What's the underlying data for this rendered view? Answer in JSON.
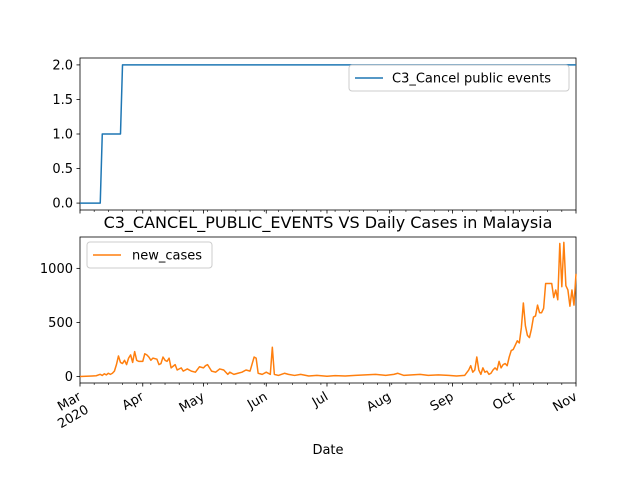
{
  "title": "C3_CANCEL_PUBLIC_EVENTS VS Daily Cases in Malaysia",
  "xlabel": "Date",
  "colors": {
    "series1": "#1f77b4",
    "series2": "#ff7f0e",
    "axes": "#000000",
    "background": "#ffffff"
  },
  "chart_data": [
    {
      "type": "line",
      "title": "",
      "xlabel": "",
      "ylabel": "",
      "legend": "top-right",
      "grid": false,
      "xlim": [
        "2020-03-01",
        "2020-11-01"
      ],
      "ylim": [
        -0.1,
        2.1
      ],
      "yticks": [
        0.0,
        0.5,
        1.0,
        1.5,
        2.0
      ],
      "ytick_labels": [
        "0.0",
        "0.5",
        "1.0",
        "1.5",
        "2.0"
      ],
      "series": [
        {
          "name": "C3_Cancel public events",
          "color": "#1f77b4",
          "points": [
            [
              "2020-03-01",
              0
            ],
            [
              "2020-03-11",
              0
            ],
            [
              "2020-03-12",
              1
            ],
            [
              "2020-03-21",
              1
            ],
            [
              "2020-03-22",
              2
            ],
            [
              "2020-11-01",
              2
            ]
          ]
        }
      ]
    },
    {
      "type": "line",
      "title": "C3_CANCEL_PUBLIC_EVENTS VS Daily Cases in Malaysia",
      "xlabel": "Date",
      "ylabel": "",
      "legend": "top-left",
      "grid": false,
      "xlim": [
        "2020-03-01",
        "2020-11-01"
      ],
      "ylim": [
        -60,
        1290
      ],
      "yticks": [
        0,
        500,
        1000
      ],
      "ytick_labels": [
        "0",
        "500",
        "1000"
      ],
      "xticks": [
        "2020-03-01",
        "2020-04-01",
        "2020-05-01",
        "2020-06-01",
        "2020-07-01",
        "2020-08-01",
        "2020-09-01",
        "2020-10-01",
        "2020-11-01"
      ],
      "xtick_labels": [
        "Mar\n2020",
        "Apr",
        "May",
        "Jun",
        "Jul",
        "Aug",
        "Sep",
        "Oct",
        "Nov"
      ],
      "series": [
        {
          "name": "new_cases",
          "color": "#ff7f0e",
          "points": [
            [
              "2020-03-01",
              0
            ],
            [
              "2020-03-04",
              2
            ],
            [
              "2020-03-07",
              5
            ],
            [
              "2020-03-09",
              7
            ],
            [
              "2020-03-11",
              20
            ],
            [
              "2020-03-12",
              10
            ],
            [
              "2020-03-13",
              25
            ],
            [
              "2020-03-14",
              15
            ],
            [
              "2020-03-15",
              30
            ],
            [
              "2020-03-16",
              20
            ],
            [
              "2020-03-17",
              30
            ],
            [
              "2020-03-18",
              50
            ],
            [
              "2020-03-19",
              110
            ],
            [
              "2020-03-20",
              190
            ],
            [
              "2020-03-21",
              130
            ],
            [
              "2020-03-22",
              120
            ],
            [
              "2020-03-23",
              150
            ],
            [
              "2020-03-24",
              110
            ],
            [
              "2020-03-25",
              170
            ],
            [
              "2020-03-26",
              200
            ],
            [
              "2020-03-27",
              130
            ],
            [
              "2020-03-28",
              230
            ],
            [
              "2020-03-29",
              150
            ],
            [
              "2020-03-30",
              140
            ],
            [
              "2020-04-01",
              140
            ],
            [
              "2020-04-02",
              210
            ],
            [
              "2020-04-03",
              200
            ],
            [
              "2020-04-04",
              180
            ],
            [
              "2020-04-05",
              150
            ],
            [
              "2020-04-06",
              170
            ],
            [
              "2020-04-08",
              160
            ],
            [
              "2020-04-09",
              110
            ],
            [
              "2020-04-10",
              120
            ],
            [
              "2020-04-11",
              180
            ],
            [
              "2020-04-12",
              150
            ],
            [
              "2020-04-13",
              140
            ],
            [
              "2020-04-14",
              170
            ],
            [
              "2020-04-15",
              80
            ],
            [
              "2020-04-17",
              110
            ],
            [
              "2020-04-18",
              60
            ],
            [
              "2020-04-20",
              80
            ],
            [
              "2020-04-21",
              50
            ],
            [
              "2020-04-23",
              70
            ],
            [
              "2020-04-25",
              50
            ],
            [
              "2020-04-27",
              40
            ],
            [
              "2020-04-29",
              90
            ],
            [
              "2020-05-01",
              80
            ],
            [
              "2020-05-02",
              100
            ],
            [
              "2020-05-03",
              110
            ],
            [
              "2020-05-05",
              50
            ],
            [
              "2020-05-07",
              40
            ],
            [
              "2020-05-09",
              70
            ],
            [
              "2020-05-11",
              60
            ],
            [
              "2020-05-13",
              20
            ],
            [
              "2020-05-14",
              40
            ],
            [
              "2020-05-16",
              20
            ],
            [
              "2020-05-18",
              30
            ],
            [
              "2020-05-20",
              40
            ],
            [
              "2020-05-22",
              60
            ],
            [
              "2020-05-24",
              50
            ],
            [
              "2020-05-26",
              180
            ],
            [
              "2020-05-27",
              170
            ],
            [
              "2020-05-28",
              30
            ],
            [
              "2020-05-30",
              20
            ],
            [
              "2020-06-01",
              40
            ],
            [
              "2020-06-03",
              20
            ],
            [
              "2020-06-04",
              270
            ],
            [
              "2020-06-05",
              20
            ],
            [
              "2020-06-07",
              10
            ],
            [
              "2020-06-10",
              30
            ],
            [
              "2020-06-12",
              20
            ],
            [
              "2020-06-15",
              10
            ],
            [
              "2020-06-18",
              20
            ],
            [
              "2020-06-22",
              5
            ],
            [
              "2020-06-26",
              10
            ],
            [
              "2020-07-01",
              2
            ],
            [
              "2020-07-05",
              8
            ],
            [
              "2020-07-10",
              5
            ],
            [
              "2020-07-15",
              10
            ],
            [
              "2020-07-20",
              15
            ],
            [
              "2020-07-25",
              20
            ],
            [
              "2020-07-30",
              10
            ],
            [
              "2020-08-03",
              20
            ],
            [
              "2020-08-05",
              30
            ],
            [
              "2020-08-08",
              10
            ],
            [
              "2020-08-12",
              15
            ],
            [
              "2020-08-16",
              20
            ],
            [
              "2020-08-20",
              10
            ],
            [
              "2020-08-25",
              15
            ],
            [
              "2020-08-30",
              10
            ],
            [
              "2020-09-03",
              5
            ],
            [
              "2020-09-07",
              10
            ],
            [
              "2020-09-09",
              60
            ],
            [
              "2020-09-10",
              100
            ],
            [
              "2020-09-11",
              40
            ],
            [
              "2020-09-12",
              60
            ],
            [
              "2020-09-13",
              180
            ],
            [
              "2020-09-14",
              60
            ],
            [
              "2020-09-15",
              20
            ],
            [
              "2020-09-16",
              80
            ],
            [
              "2020-09-17",
              40
            ],
            [
              "2020-09-18",
              50
            ],
            [
              "2020-09-19",
              20
            ],
            [
              "2020-09-20",
              30
            ],
            [
              "2020-09-21",
              60
            ],
            [
              "2020-09-22",
              80
            ],
            [
              "2020-09-23",
              60
            ],
            [
              "2020-09-24",
              140
            ],
            [
              "2020-09-25",
              80
            ],
            [
              "2020-09-26",
              110
            ],
            [
              "2020-09-27",
              120
            ],
            [
              "2020-09-28",
              100
            ],
            [
              "2020-09-29",
              180
            ],
            [
              "2020-09-30",
              240
            ],
            [
              "2020-10-01",
              250
            ],
            [
              "2020-10-02",
              290
            ],
            [
              "2020-10-03",
              330
            ],
            [
              "2020-10-04",
              310
            ],
            [
              "2020-10-05",
              450
            ],
            [
              "2020-10-06",
              680
            ],
            [
              "2020-10-07",
              470
            ],
            [
              "2020-10-08",
              380
            ],
            [
              "2020-10-09",
              360
            ],
            [
              "2020-10-10",
              440
            ],
            [
              "2020-10-11",
              550
            ],
            [
              "2020-10-12",
              560
            ],
            [
              "2020-10-13",
              660
            ],
            [
              "2020-10-14",
              590
            ],
            [
              "2020-10-15",
              590
            ],
            [
              "2020-10-16",
              630
            ],
            [
              "2020-10-17",
              860
            ],
            [
              "2020-10-18",
              860
            ],
            [
              "2020-10-19",
              860
            ],
            [
              "2020-10-20",
              860
            ],
            [
              "2020-10-21",
              730
            ],
            [
              "2020-10-22",
              800
            ],
            [
              "2020-10-23",
              710
            ],
            [
              "2020-10-24",
              1230
            ],
            [
              "2020-10-25",
              830
            ],
            [
              "2020-10-26",
              1240
            ],
            [
              "2020-10-27",
              840
            ],
            [
              "2020-10-28",
              800
            ],
            [
              "2020-10-29",
              650
            ],
            [
              "2020-10-30",
              800
            ],
            [
              "2020-10-31",
              660
            ],
            [
              "2020-11-01",
              950
            ]
          ]
        }
      ]
    }
  ]
}
